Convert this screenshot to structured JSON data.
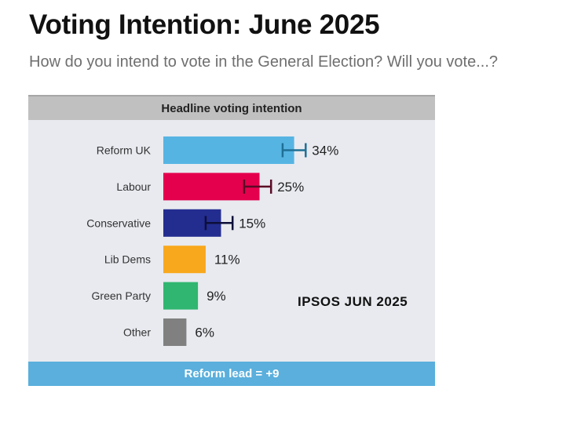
{
  "header": {
    "title": "Voting Intention: June 2025",
    "subtitle": "How do you intend to vote in the General Election? Will you vote...?"
  },
  "panel": {
    "heading": "Headline voting intention",
    "footer": "Reform lead = +9",
    "source_label": "IPSOS JUN 2025"
  },
  "chart_data": {
    "type": "bar",
    "orientation": "horizontal",
    "title": "Headline voting intention",
    "categories": [
      "Reform UK",
      "Labour",
      "Conservative",
      "Lib Dems",
      "Green Party",
      "Other"
    ],
    "values": [
      34,
      25,
      15,
      11,
      9,
      6
    ],
    "value_labels": [
      "34%",
      "25%",
      "15%",
      "11%",
      "9%",
      "6%"
    ],
    "colors": [
      "#56b4e3",
      "#e5004e",
      "#232d90",
      "#f8a81d",
      "#30b670",
      "#808080"
    ],
    "error_bars": [
      {
        "category": "Reform UK",
        "low": 31,
        "high": 37,
        "color": "#1f6f96"
      },
      {
        "category": "Labour",
        "low": 21,
        "high": 28,
        "color": "#5b0a25"
      },
      {
        "category": "Conservative",
        "low": 11,
        "high": 18,
        "color": "#0d0f3a"
      }
    ],
    "xlim": [
      0,
      100
    ],
    "grid": false,
    "legend": "none"
  }
}
